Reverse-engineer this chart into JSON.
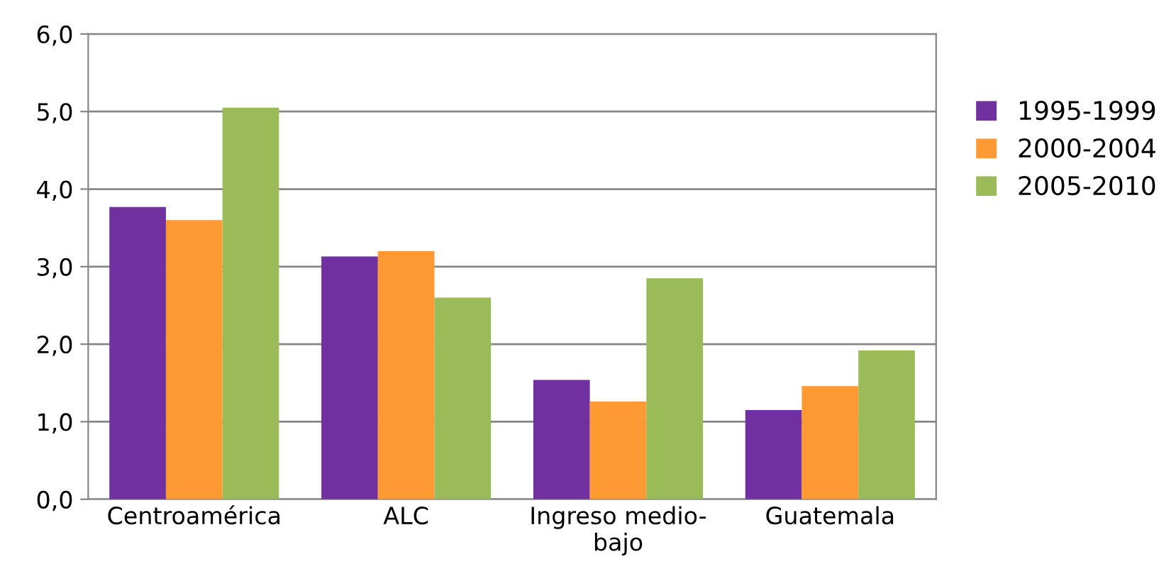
{
  "chart_data": {
    "type": "bar",
    "categories": [
      "Centroamérica",
      "ALC",
      "Ingreso medio-\nbajo",
      "Guatemala"
    ],
    "series": [
      {
        "name": "1995-1999",
        "color": "#7030a0",
        "values": [
          3.77,
          3.13,
          1.54,
          1.15
        ]
      },
      {
        "name": "2000-2004",
        "color": "#ff9933",
        "values": [
          3.6,
          3.2,
          1.26,
          1.46
        ]
      },
      {
        "name": "2005-2010",
        "color": "#9bbb59",
        "values": [
          5.05,
          2.6,
          2.85,
          1.92
        ]
      }
    ],
    "ylim": [
      0,
      6
    ],
    "yticks": [
      {
        "value": 0,
        "label": "0,0"
      },
      {
        "value": 1,
        "label": "1,0"
      },
      {
        "value": 2,
        "label": "2,0"
      },
      {
        "value": 3,
        "label": "3,0"
      },
      {
        "value": 4,
        "label": "4,0"
      },
      {
        "value": 5,
        "label": "5,0"
      },
      {
        "value": 6,
        "label": "6,0"
      }
    ],
    "grid": "y",
    "legend": "right"
  }
}
